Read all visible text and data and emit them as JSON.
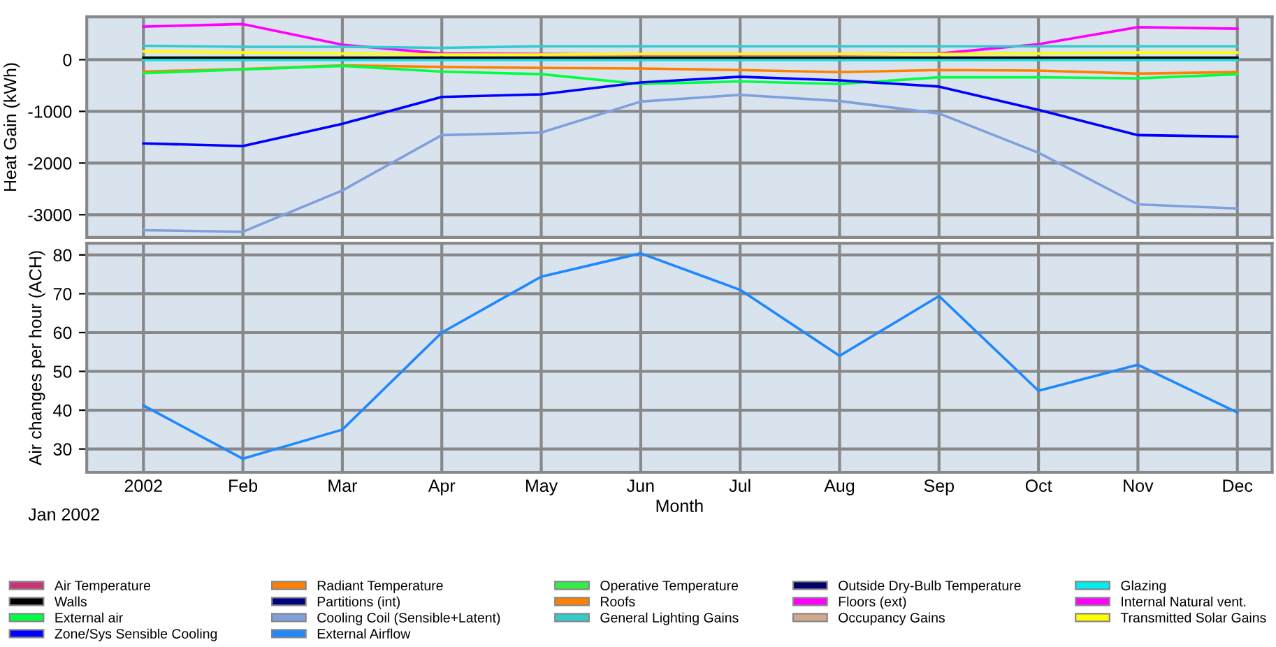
{
  "chart_data": [
    {
      "type": "line",
      "ylabel": "Heat Gain (kWh)",
      "ylim": [
        -3440,
        830
      ],
      "yticks": [
        -3000,
        -2000,
        -1000,
        0
      ],
      "grid": true,
      "tick_labels": "y",
      "legend": "bottom",
      "series": [
        {
          "name": "Air Temperature",
          "color": "#cc3377",
          "values": [
            null,
            null,
            null,
            null,
            null,
            null,
            null,
            null,
            null,
            null,
            null,
            null
          ]
        },
        {
          "name": "Radiant Temperature",
          "color": "#ff8000",
          "values": [
            null,
            null,
            null,
            null,
            null,
            null,
            null,
            null,
            null,
            null,
            null,
            null
          ]
        },
        {
          "name": "Operative Temperature",
          "color": "#33ee44",
          "values": [
            null,
            null,
            null,
            null,
            null,
            null,
            null,
            null,
            null,
            null,
            null,
            null
          ]
        },
        {
          "name": "Outside Dry-Bulb Temperature",
          "color": "#000066",
          "values": [
            null,
            null,
            null,
            null,
            null,
            null,
            null,
            null,
            null,
            null,
            null,
            null
          ]
        },
        {
          "name": "Glazing",
          "color": "#00eeee",
          "values": [
            0,
            0,
            0,
            0,
            0,
            0,
            0,
            0,
            0,
            0,
            0,
            0
          ]
        },
        {
          "name": "Walls",
          "color": "#000000",
          "values": [
            40,
            40,
            40,
            40,
            40,
            40,
            40,
            40,
            40,
            40,
            40,
            40
          ]
        },
        {
          "name": "Partitions (int)",
          "color": "#000080",
          "values": [
            null,
            null,
            null,
            null,
            null,
            null,
            null,
            null,
            null,
            null,
            null,
            null
          ]
        },
        {
          "name": "Roofs",
          "color": "#ff8000",
          "values": [
            -230,
            -180,
            -110,
            -140,
            -160,
            -170,
            -200,
            -240,
            -200,
            -210,
            -270,
            -240
          ]
        },
        {
          "name": "Floors (ext)",
          "color": "#ff00ff",
          "values": [
            null,
            null,
            null,
            null,
            null,
            null,
            null,
            null,
            null,
            null,
            null,
            null
          ]
        },
        {
          "name": "Internal Natural vent.",
          "color": "#ff00ff",
          "values": [
            640,
            690,
            290,
            120,
            110,
            100,
            100,
            100,
            120,
            300,
            630,
            600
          ]
        },
        {
          "name": "External air",
          "color": "#00ff44",
          "values": [
            -260,
            -190,
            -120,
            -230,
            -280,
            -470,
            -420,
            -470,
            -340,
            -340,
            -360,
            -280
          ]
        },
        {
          "name": "Cooling Coil (Sensible+Latent)",
          "color": "#7fa0dd",
          "values": [
            -3300,
            -3330,
            -2530,
            -1460,
            -1410,
            -810,
            -680,
            -800,
            -1040,
            -1800,
            -2800,
            -2880
          ]
        },
        {
          "name": "General Lighting Gains",
          "color": "#33cccc",
          "values": [
            270,
            250,
            250,
            230,
            260,
            260,
            260,
            260,
            260,
            260,
            260,
            260
          ]
        },
        {
          "name": "Occupancy Gains",
          "color": "#d2a98a",
          "values": [
            null,
            null,
            null,
            null,
            null,
            null,
            null,
            null,
            null,
            null,
            null,
            null
          ]
        },
        {
          "name": "Transmitted Solar Gains",
          "color": "#ffff00",
          "values": [
            160,
            140,
            120,
            100,
            100,
            110,
            110,
            110,
            110,
            120,
            140,
            140
          ]
        },
        {
          "name": "Zone/Sys Sensible Cooling",
          "color": "#0000ff",
          "values": [
            -1620,
            -1670,
            -1240,
            -720,
            -670,
            -440,
            -330,
            -400,
            -520,
            -970,
            -1460,
            -1490
          ]
        }
      ]
    },
    {
      "type": "line",
      "ylabel": "Air changes per hour (ACH)",
      "xlabel": "Month",
      "categories": [
        "2002",
        "Feb",
        "Mar",
        "Apr",
        "May",
        "Jun",
        "Jul",
        "Aug",
        "Sep",
        "Oct",
        "Nov",
        "Dec"
      ],
      "ylim": [
        24,
        83
      ],
      "yticks": [
        30,
        40,
        50,
        60,
        70,
        80
      ],
      "grid": true,
      "legend": "bottom",
      "annotations": [
        "Jan 2002"
      ],
      "series": [
        {
          "name": "External Airflow",
          "color": "#1e88ff",
          "values": [
            41.2,
            27.5,
            35,
            60,
            74.4,
            80.4,
            71,
            54,
            69.4,
            45,
            51.7,
            39.4
          ]
        }
      ]
    }
  ]
}
